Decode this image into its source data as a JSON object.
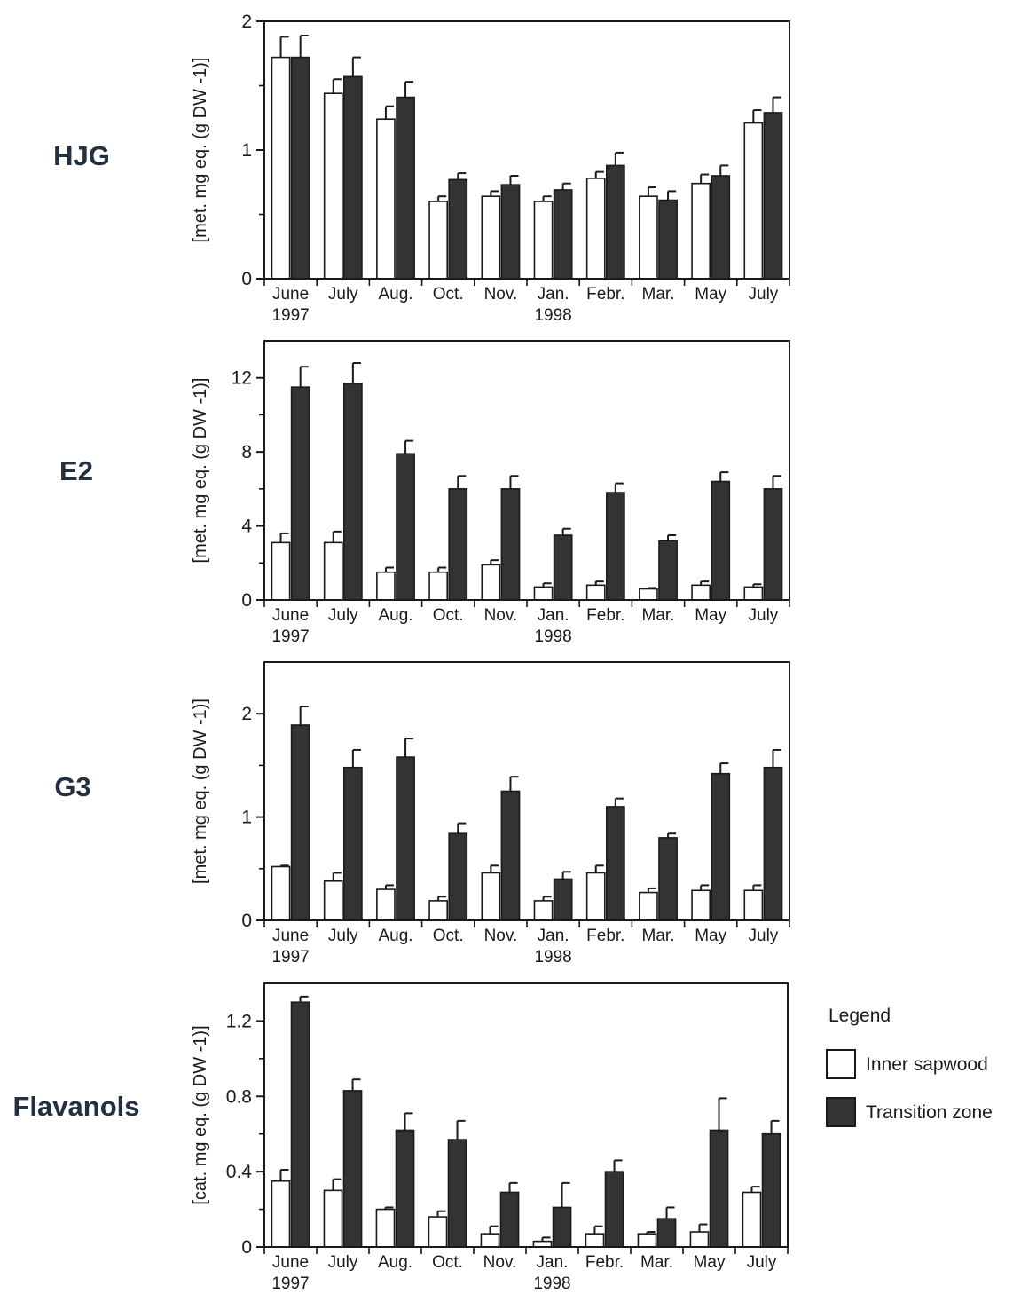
{
  "legend": {
    "title": "Legend",
    "items": [
      {
        "label": "Inner sapwood",
        "color": "#ffffff"
      },
      {
        "label": "Transition zone",
        "color": "#333333"
      }
    ]
  },
  "colors": {
    "inner_sapwood": "#ffffff",
    "transition_zone": "#333333",
    "axis": "#1a1a1a"
  },
  "chart_data": [
    {
      "type": "bar",
      "title": "HJG",
      "ylabel": "[met. mg eq. (g DW -1)]",
      "categories": [
        "June",
        "July",
        "Aug.",
        "Oct.",
        "Nov.",
        "Jan.",
        "Febr.",
        "Mar.",
        "May",
        "July"
      ],
      "year_labels": [
        {
          "category_index": 0,
          "text": "1997"
        },
        {
          "category_index": 5,
          "text": "1998"
        }
      ],
      "ylim": [
        0,
        2
      ],
      "yticks": [
        0,
        1,
        2
      ],
      "minor_yticks": [
        0.5,
        1.5
      ],
      "series": [
        {
          "name": "Inner sapwood",
          "values": [
            1.72,
            1.44,
            1.24,
            0.6,
            0.64,
            0.6,
            0.78,
            0.64,
            0.74,
            1.21
          ],
          "errors": [
            0.16,
            0.11,
            0.1,
            0.04,
            0.04,
            0.04,
            0.05,
            0.07,
            0.07,
            0.1
          ]
        },
        {
          "name": "Transition zone",
          "values": [
            1.72,
            1.57,
            1.41,
            0.77,
            0.73,
            0.69,
            0.88,
            0.61,
            0.8,
            1.29
          ],
          "errors": [
            0.17,
            0.15,
            0.12,
            0.05,
            0.07,
            0.05,
            0.1,
            0.07,
            0.08,
            0.12
          ]
        }
      ]
    },
    {
      "type": "bar",
      "title": "E2",
      "ylabel": "[met. mg eq. (g DW -1)]",
      "categories": [
        "June",
        "July",
        "Aug.",
        "Oct.",
        "Nov.",
        "Jan.",
        "Febr.",
        "Mar.",
        "May",
        "July"
      ],
      "year_labels": [
        {
          "category_index": 0,
          "text": "1997"
        },
        {
          "category_index": 5,
          "text": "1998"
        }
      ],
      "ylim": [
        0,
        14
      ],
      "yticks": [
        0,
        4,
        8,
        12
      ],
      "minor_yticks": [
        2,
        6,
        10
      ],
      "series": [
        {
          "name": "Inner sapwood",
          "values": [
            3.1,
            3.1,
            1.5,
            1.5,
            1.9,
            0.7,
            0.8,
            0.6,
            0.8,
            0.7
          ],
          "errors": [
            0.5,
            0.6,
            0.25,
            0.25,
            0.25,
            0.2,
            0.2,
            0.05,
            0.2,
            0.15
          ]
        },
        {
          "name": "Transition zone",
          "values": [
            11.5,
            11.7,
            7.9,
            6.0,
            6.0,
            3.5,
            5.8,
            3.2,
            6.4,
            6.0
          ],
          "errors": [
            1.1,
            1.1,
            0.7,
            0.7,
            0.7,
            0.35,
            0.5,
            0.3,
            0.5,
            0.7
          ]
        }
      ]
    },
    {
      "type": "bar",
      "title": "G3",
      "ylabel": "[met. mg eq. (g DW -1)]",
      "categories": [
        "June",
        "July",
        "Aug.",
        "Oct.",
        "Nov.",
        "Jan.",
        "Febr.",
        "Mar.",
        "May",
        "July"
      ],
      "year_labels": [
        {
          "category_index": 0,
          "text": "1997"
        },
        {
          "category_index": 5,
          "text": "1998"
        }
      ],
      "ylim": [
        0,
        2.5
      ],
      "yticks": [
        0,
        1,
        2
      ],
      "minor_yticks": [
        0.5,
        1.5
      ],
      "series": [
        {
          "name": "Inner sapwood",
          "values": [
            0.52,
            0.38,
            0.3,
            0.19,
            0.46,
            0.19,
            0.46,
            0.27,
            0.29,
            0.29
          ],
          "errors": [
            0.01,
            0.08,
            0.04,
            0.04,
            0.07,
            0.04,
            0.07,
            0.04,
            0.05,
            0.05
          ]
        },
        {
          "name": "Transition zone",
          "values": [
            1.89,
            1.48,
            1.58,
            0.84,
            1.25,
            0.4,
            1.1,
            0.8,
            1.42,
            1.48
          ],
          "errors": [
            0.18,
            0.17,
            0.18,
            0.1,
            0.14,
            0.07,
            0.08,
            0.04,
            0.1,
            0.17
          ]
        }
      ]
    },
    {
      "type": "bar",
      "title": "Flavanols",
      "ylabel": "[cat. mg eq. (g DW -1)]",
      "categories": [
        "June",
        "July",
        "Aug.",
        "Oct.",
        "Nov.",
        "Jan.",
        "Febr.",
        "Mar.",
        "May",
        "July"
      ],
      "year_labels": [
        {
          "category_index": 0,
          "text": "1997"
        },
        {
          "category_index": 5,
          "text": "1998"
        }
      ],
      "ylim": [
        0,
        1.4
      ],
      "yticks": [
        0,
        0.4,
        0.8,
        1.2
      ],
      "ytick_labels": [
        "0",
        "0.4",
        "0.8",
        "1.2"
      ],
      "minor_yticks": [
        0.2,
        0.6,
        1.0
      ],
      "series": [
        {
          "name": "Inner sapwood",
          "values": [
            0.35,
            0.3,
            0.2,
            0.16,
            0.07,
            0.03,
            0.07,
            0.07,
            0.08,
            0.29
          ],
          "errors": [
            0.06,
            0.06,
            0.01,
            0.03,
            0.04,
            0.02,
            0.04,
            0.01,
            0.04,
            0.03
          ]
        },
        {
          "name": "Transition zone",
          "values": [
            1.3,
            0.83,
            0.62,
            0.57,
            0.29,
            0.21,
            0.4,
            0.15,
            0.62,
            0.6
          ],
          "errors": [
            0.03,
            0.06,
            0.09,
            0.1,
            0.05,
            0.13,
            0.06,
            0.06,
            0.17,
            0.07
          ]
        }
      ]
    }
  ]
}
